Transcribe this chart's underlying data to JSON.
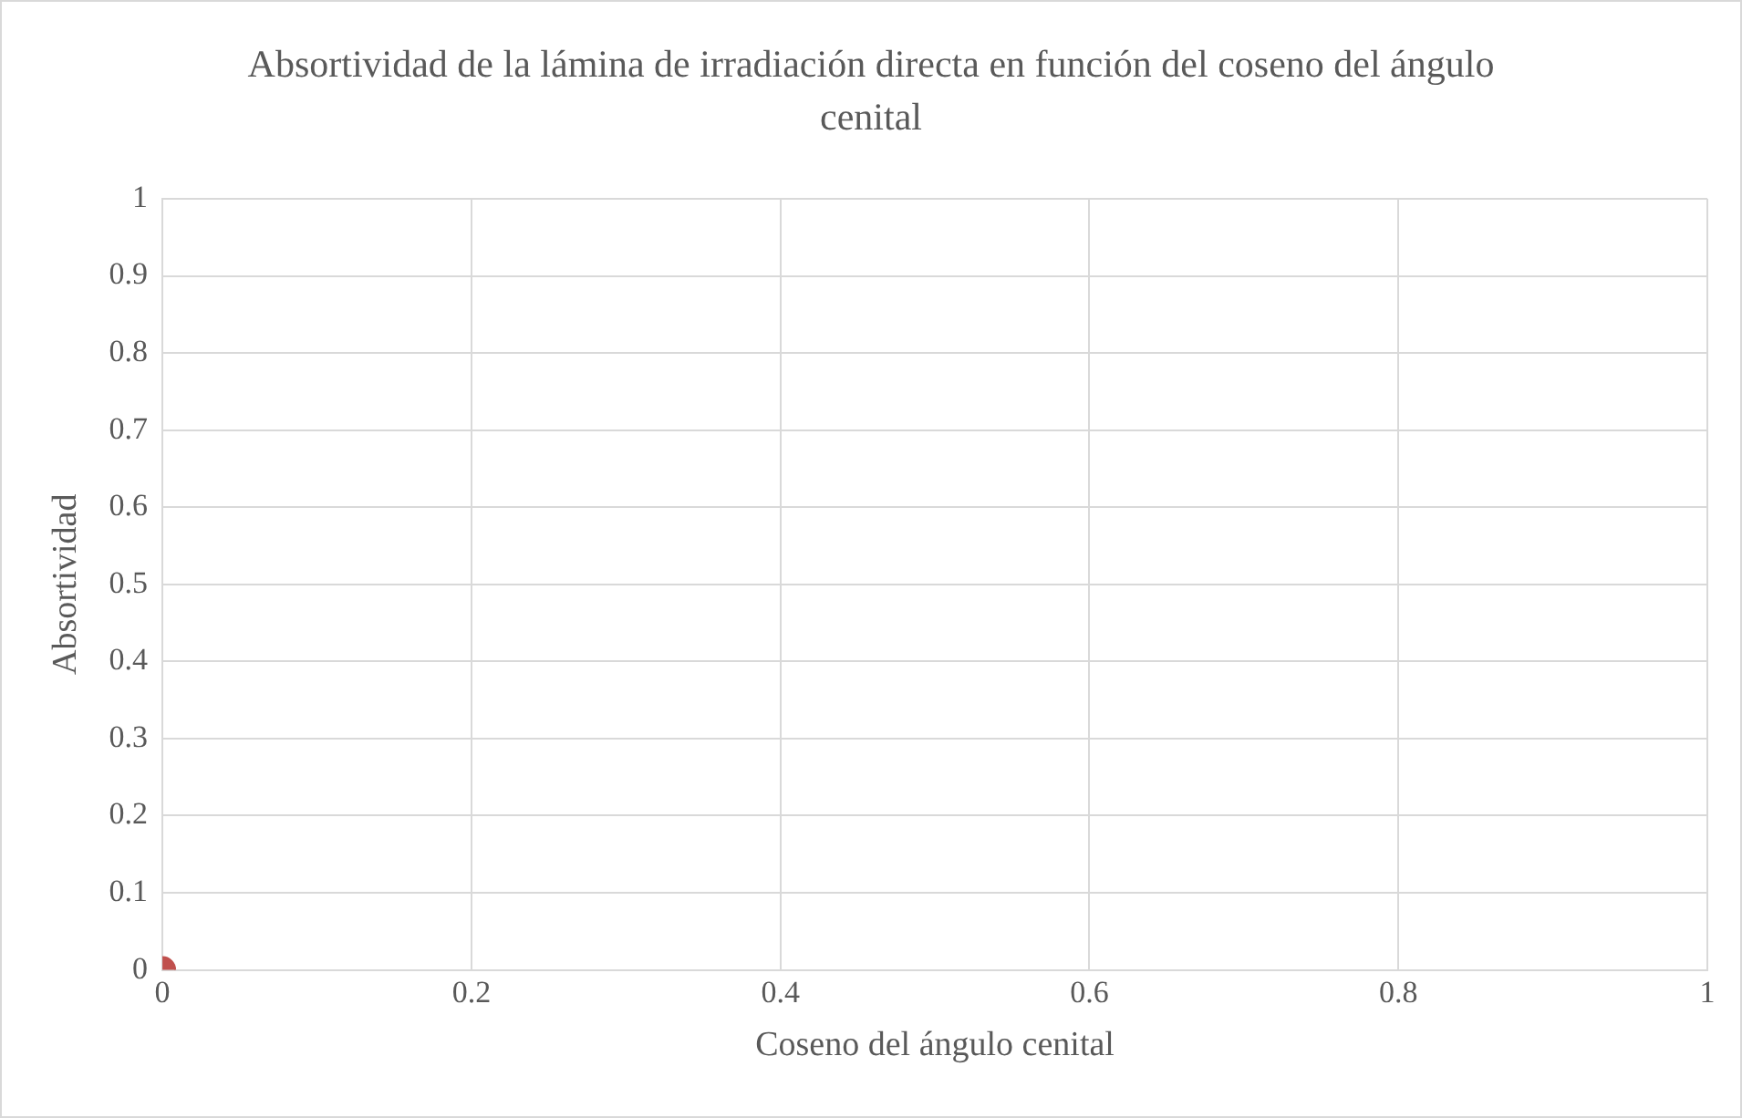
{
  "chart_data": {
    "type": "scatter",
    "title": "Absortividad de la lámina de irradiación directa en función del coseno del ángulo cenital",
    "xlabel": "Coseno del ángulo cenital",
    "ylabel": "Absortividad",
    "x": [
      0
    ],
    "values": [
      0
    ],
    "color": "#c0504d",
    "marker": "circle",
    "xlim": [
      0,
      1
    ],
    "xticks": [
      0,
      0.2,
      0.4,
      0.6,
      0.8,
      1
    ],
    "ylim": [
      0,
      1
    ],
    "yticks": [
      0,
      0.1,
      0.2,
      0.3,
      0.4,
      0.5,
      0.6,
      0.7,
      0.8,
      0.9,
      1
    ],
    "grid": true,
    "legend": false
  }
}
